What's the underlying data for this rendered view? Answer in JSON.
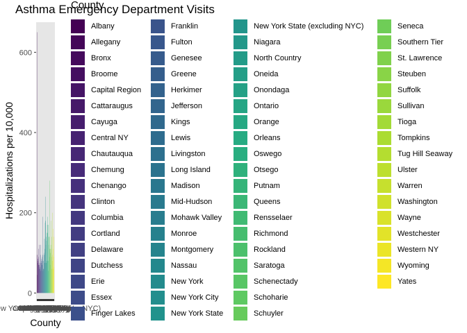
{
  "chart_data": {
    "type": "bar",
    "title": "Asthma Emergency Department Visits",
    "xlabel": "County",
    "ylabel": "Hospitalizations per 10,000",
    "ylim": [
      -15,
      675
    ],
    "y_ticks": [
      0,
      200,
      400,
      600
    ],
    "grid": false,
    "legend_title": "County",
    "legend_position": "right",
    "colormap": "viridis",
    "panel_background": "#e6e6e6",
    "categories": [
      "Albany",
      "Allegany",
      "Bronx",
      "Broome",
      "Capital Region",
      "Cattaraugus",
      "Cayuga",
      "Central NY",
      "Chautauqua",
      "Chemung",
      "Chenango",
      "Clinton",
      "Columbia",
      "Cortland",
      "Delaware",
      "Dutchess",
      "Erie",
      "Essex",
      "Finger Lakes",
      "Franklin",
      "Fulton",
      "Genesee",
      "Greene",
      "Herkimer",
      "Jefferson",
      "Kings",
      "Lewis",
      "Livingston",
      "Long Island",
      "Madison",
      "Mid-Hudson",
      "Mohawk Valley",
      "Monroe",
      "Montgomery",
      "Nassau",
      "New York",
      "New York City",
      "New York State",
      "New York State (excluding NYC)",
      "Niagara",
      "North Country",
      "Oneida",
      "Onondaga",
      "Ontario",
      "Orange",
      "Orleans",
      "Oswego",
      "Otsego",
      "Putnam",
      "Queens",
      "Rensselaer",
      "Richmond",
      "Rockland",
      "Saratoga",
      "Schenectady",
      "Schoharie",
      "Schuyler",
      "Seneca",
      "Southern Tier",
      "St. Lawrence",
      "Steuben",
      "Suffolk",
      "Sullivan",
      "Tioga",
      "Tompkins",
      "Tug Hill Seaway",
      "Ulster",
      "Warren",
      "Washington",
      "Wayne",
      "Westchester",
      "Western NY",
      "Wyoming",
      "Yates"
    ],
    "values": [
      95,
      45,
      650,
      80,
      85,
      75,
      70,
      90,
      110,
      120,
      60,
      70,
      65,
      75,
      60,
      95,
      120,
      55,
      75,
      80,
      85,
      70,
      80,
      90,
      95,
      190,
      55,
      60,
      80,
      60,
      95,
      100,
      135,
      110,
      75,
      175,
      240,
      180,
      120,
      140,
      75,
      130,
      150,
      80,
      170,
      150,
      190,
      80,
      55,
      170,
      120,
      140,
      140,
      90,
      280,
      110,
      70,
      100,
      110,
      120,
      110,
      180,
      140,
      90,
      60,
      200,
      95,
      80,
      60,
      110,
      160,
      140,
      90,
      65
    ]
  }
}
